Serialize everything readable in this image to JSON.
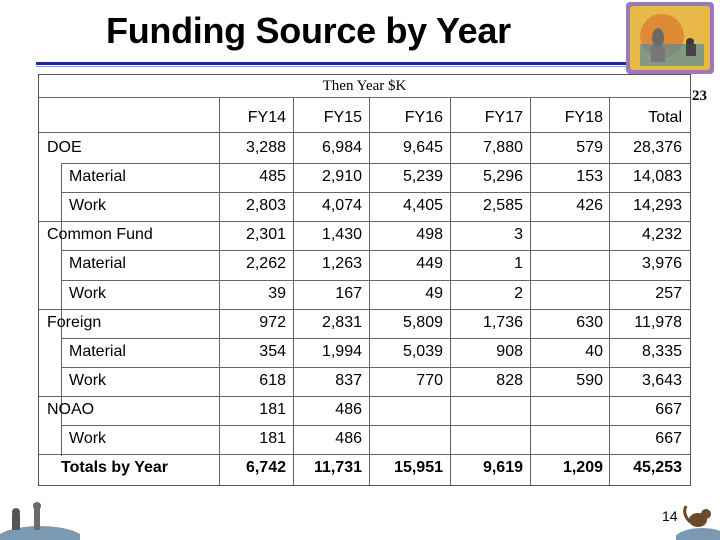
{
  "title": "Funding Source by Year",
  "ref_number": "23",
  "slide_number": "14",
  "table": {
    "subheading": "Then Year $K",
    "columns": [
      "FY14",
      "FY15",
      "FY16",
      "FY17",
      "FY18",
      "Total"
    ],
    "rows": [
      {
        "label": "DOE",
        "values": [
          "3,288",
          "6,984",
          "9,645",
          "7,880",
          "579",
          "28,376"
        ]
      },
      {
        "label": "Material",
        "values": [
          "485",
          "2,910",
          "5,239",
          "5,296",
          "153",
          "14,083"
        ]
      },
      {
        "label": "Work",
        "values": [
          "2,803",
          "4,074",
          "4,405",
          "2,585",
          "426",
          "14,293"
        ]
      },
      {
        "label": "Common Fund",
        "values": [
          "2,301",
          "1,430",
          "498",
          "3",
          "",
          "4,232"
        ]
      },
      {
        "label": "Material",
        "values": [
          "2,262",
          "1,263",
          "449",
          "1",
          "",
          "3,976"
        ]
      },
      {
        "label": "Work",
        "values": [
          "39",
          "167",
          "49",
          "2",
          "",
          "257"
        ]
      },
      {
        "label": "Foreign",
        "values": [
          "972",
          "2,831",
          "5,809",
          "1,736",
          "630",
          "11,978"
        ]
      },
      {
        "label": "Material",
        "values": [
          "354",
          "1,994",
          "5,039",
          "908",
          "40",
          "8,335"
        ]
      },
      {
        "label": "Work",
        "values": [
          "618",
          "837",
          "770",
          "828",
          "590",
          "3,643"
        ]
      },
      {
        "label": "NOAO",
        "values": [
          "181",
          "486",
          "",
          "",
          "",
          "667"
        ]
      },
      {
        "label": "Work",
        "values": [
          "181",
          "486",
          "",
          "",
          "",
          "667"
        ]
      }
    ],
    "totals": {
      "label": "Totals by Year",
      "values": [
        "6,742",
        "11,731",
        "15,951",
        "9,619",
        "1,209",
        "45,253"
      ]
    }
  },
  "colors": {
    "rule": "#1c2c9c",
    "logo_bg": "#e8b84a",
    "logo_frame": "#9a7ab8"
  }
}
